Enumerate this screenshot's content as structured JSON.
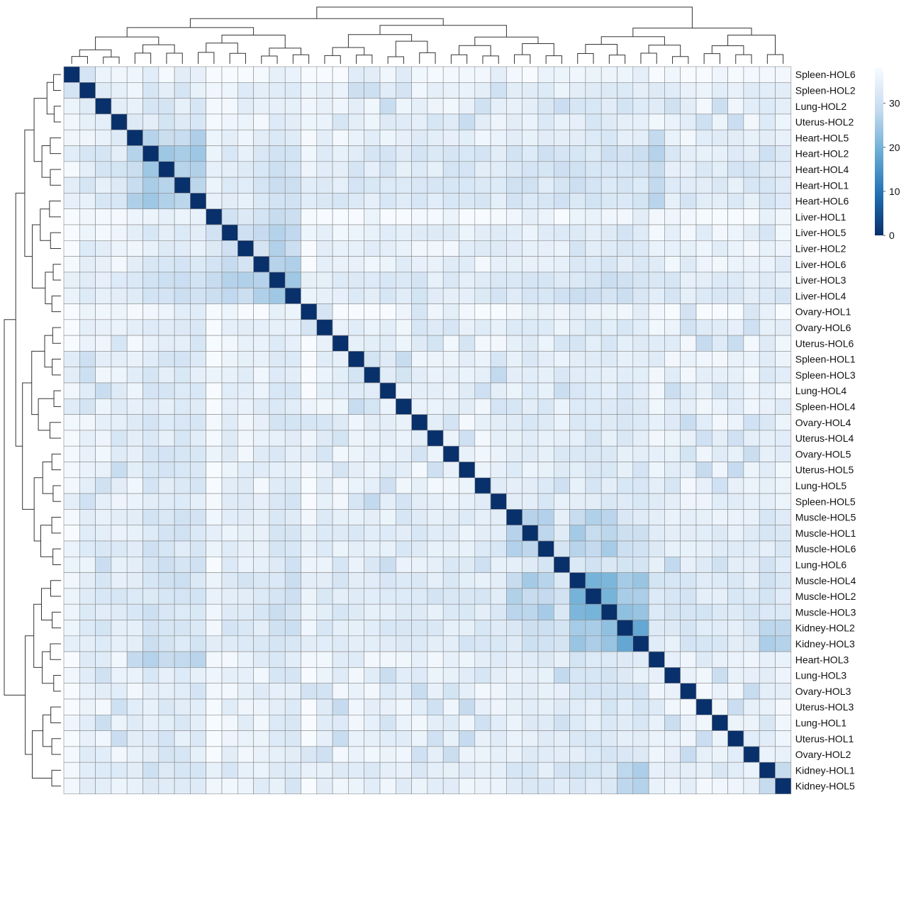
{
  "chart_data": {
    "type": "heatmap",
    "title": "",
    "xlabel": "",
    "ylabel": "",
    "labels": [
      "Spleen-HOL6",
      "Spleen-HOL2",
      "Lung-HOL2",
      "Uterus-HOL2",
      "Heart-HOL5",
      "Heart-HOL2",
      "Heart-HOL4",
      "Heart-HOL1",
      "Heart-HOL6",
      "Liver-HOL1",
      "Liver-HOL5",
      "Liver-HOL2",
      "Liver-HOL6",
      "Liver-HOL3",
      "Liver-HOL4",
      "Ovary-HOL1",
      "Ovary-HOL6",
      "Uterus-HOL6",
      "Spleen-HOL1",
      "Spleen-HOL3",
      "Lung-HOL4",
      "Spleen-HOL4",
      "Ovary-HOL4",
      "Uterus-HOL4",
      "Ovary-HOL5",
      "Uterus-HOL5",
      "Lung-HOL5",
      "Spleen-HOL5",
      "Muscle-HOL5",
      "Muscle-HOL1",
      "Muscle-HOL6",
      "Lung-HOL6",
      "Muscle-HOL4",
      "Muscle-HOL2",
      "Muscle-HOL3",
      "Kidney-HOL2",
      "Kidney-HOL3",
      "Heart-HOL3",
      "Lung-HOL3",
      "Ovary-HOL3",
      "Uterus-HOL3",
      "Lung-HOL1",
      "Uterus-HOL1",
      "Ovary-HOL2",
      "Kidney-HOL1",
      "Kidney-HOL5"
    ],
    "groups": [
      "Spleen",
      "Spleen",
      "Lung",
      "Uterus",
      "Heart",
      "Heart",
      "Heart",
      "Heart",
      "Heart",
      "Liver",
      "Liver",
      "Liver",
      "Liver",
      "Liver",
      "Liver",
      "Ovary",
      "Ovary",
      "Uterus",
      "Spleen",
      "Spleen",
      "Lung",
      "Spleen",
      "Ovary",
      "Uterus",
      "Ovary",
      "Uterus",
      "Lung",
      "Spleen",
      "Muscle",
      "Muscle",
      "Muscle",
      "Lung",
      "Muscle",
      "Muscle",
      "Muscle",
      "Kidney",
      "Kidney",
      "Heart",
      "Lung",
      "Ovary",
      "Uterus",
      "Lung",
      "Uterus",
      "Ovary",
      "Kidney",
      "Kidney"
    ],
    "diagonal_value": 0,
    "value_range": [
      0,
      38
    ],
    "colorbar_ticks": [
      0,
      10,
      20,
      30
    ],
    "colors": {
      "low": "#08306b",
      "high": "#f7fbff",
      "grid": "#8c8c8c",
      "dendrogram": "#333333"
    },
    "legend_position": "top-right",
    "row_dendrogram": "left",
    "column_dendrogram": "top",
    "matrix_description_note": ""
  }
}
